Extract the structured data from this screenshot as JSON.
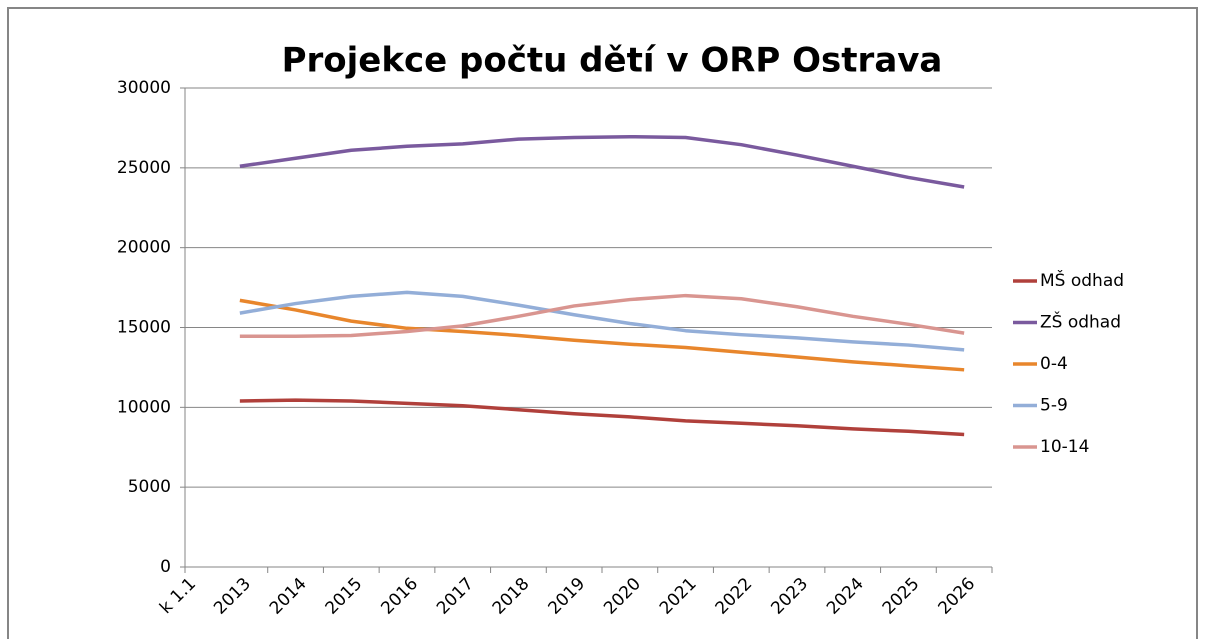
{
  "chart_data": {
    "type": "line",
    "title": "Projekce počtu dětí v ORP Ostrava",
    "xlabel": "k 1.1",
    "categories": [
      "2013",
      "2014",
      "2015",
      "2016",
      "2017",
      "2018",
      "2019",
      "2020",
      "2021",
      "2022",
      "2023",
      "2024",
      "2025",
      "2026"
    ],
    "series": [
      {
        "name": "MŠ odhad",
        "color": "#b0403b",
        "values": [
          10400,
          10450,
          10400,
          10250,
          10100,
          9850,
          9600,
          9400,
          9150,
          9000,
          8850,
          8650,
          8500,
          8300
        ]
      },
      {
        "name": "ZŠ odhad",
        "color": "#7a5a9e",
        "values": [
          25100,
          25600,
          26100,
          26350,
          26500,
          26800,
          26900,
          26950,
          26900,
          26450,
          25800,
          25100,
          24400,
          23800
        ]
      },
      {
        "name": "0-4",
        "color": "#e8862c",
        "values": [
          16700,
          16100,
          15400,
          14950,
          14750,
          14500,
          14200,
          13950,
          13750,
          13450,
          13150,
          12850,
          12600,
          12350
        ]
      },
      {
        "name": "5-9",
        "color": "#93aed8",
        "values": [
          15900,
          16500,
          16950,
          17200,
          16950,
          16400,
          15800,
          15250,
          14800,
          14550,
          14350,
          14100,
          13900,
          13600
        ]
      },
      {
        "name": "10-14",
        "color": "#d99590",
        "values": [
          14450,
          14450,
          14500,
          14750,
          15100,
          15700,
          16350,
          16750,
          17000,
          16800,
          16300,
          15700,
          15200,
          14650
        ]
      }
    ],
    "ylim": [
      0,
      30000
    ],
    "yticks": [
      0,
      5000,
      10000,
      15000,
      20000,
      25000,
      30000
    ],
    "grid": true,
    "legend": "right"
  }
}
